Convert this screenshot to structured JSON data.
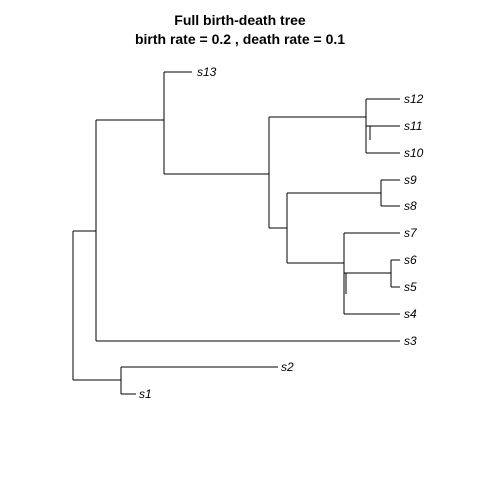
{
  "title": {
    "line1": "Full birth-death tree",
    "line2": "birth rate =  0.2 , death rate =  0.1"
  },
  "tips": {
    "s13": "s13",
    "s12": "s12",
    "s11": "s11",
    "s10": "s10",
    "s9": "s9",
    "s8": "s8",
    "s7": "s7",
    "s6": "s6",
    "s5": "s5",
    "s4": "s4",
    "s3": "s3",
    "s2": "s2",
    "s1": "s1"
  }
}
